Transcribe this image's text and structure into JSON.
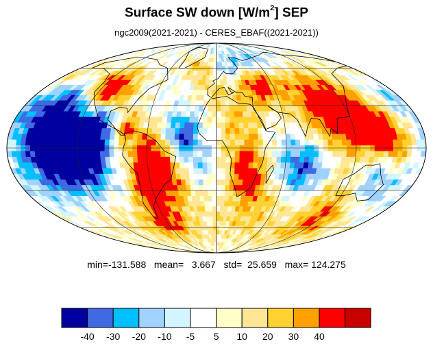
{
  "title": {
    "main": "Surface SW down [W/m",
    "sup": "2",
    "suffix": "]  SEP"
  },
  "subtitle": "ngc2009(2021-2021) - CERES_EBAF((2021-2021))",
  "stats": {
    "min": "-131.588",
    "mean": "3.667",
    "std": "25.659",
    "max": "124.275",
    "line": "min=-131.588   mean=   3.667   std=  25.659   max= 124.275"
  },
  "colorbar": {
    "colors": [
      "#0000a0",
      "#3f6ae3",
      "#00bfff",
      "#a0d2ff",
      "#d2f5ff",
      "#ffffff",
      "#ffffc8",
      "#ffe696",
      "#ffd232",
      "#ffa000",
      "#ff0000",
      "#c80000"
    ],
    "labels": [
      "-40",
      "-30",
      "-20",
      "-10",
      "-5",
      "5",
      "10",
      "20",
      "30",
      "40"
    ]
  },
  "map": {
    "projection": "mollweide",
    "blobs": [
      {
        "lon": -140,
        "lat": 5,
        "v": -50,
        "r": 22
      },
      {
        "lon": -115,
        "lat": -5,
        "v": -45,
        "r": 16
      },
      {
        "lon": -150,
        "lat": 28,
        "v": -25,
        "r": 15
      },
      {
        "lon": -140,
        "lat": -20,
        "v": -15,
        "r": 18
      },
      {
        "lon": -100,
        "lat": 20,
        "v": -40,
        "r": 10
      },
      {
        "lon": -60,
        "lat": -5,
        "v": 45,
        "r": 14
      },
      {
        "lon": -45,
        "lat": -20,
        "v": 40,
        "r": 12
      },
      {
        "lon": -65,
        "lat": -32,
        "v": 35,
        "r": 10
      },
      {
        "lon": -100,
        "lat": 35,
        "v": 40,
        "r": 12
      },
      {
        "lon": -115,
        "lat": 45,
        "v": 45,
        "r": 10
      },
      {
        "lon": -80,
        "lat": 15,
        "v": 35,
        "r": 8
      },
      {
        "lon": -30,
        "lat": 10,
        "v": -40,
        "r": 10
      },
      {
        "lon": -20,
        "lat": -10,
        "v": -15,
        "r": 12
      },
      {
        "lon": 20,
        "lat": 20,
        "v": 25,
        "r": 14
      },
      {
        "lon": 25,
        "lat": -10,
        "v": 35,
        "r": 12
      },
      {
        "lon": 30,
        "lat": -25,
        "v": 25,
        "r": 10
      },
      {
        "lon": 45,
        "lat": 45,
        "v": 45,
        "r": 10
      },
      {
        "lon": 100,
        "lat": 30,
        "v": 50,
        "r": 20
      },
      {
        "lon": 130,
        "lat": 15,
        "v": 45,
        "r": 16
      },
      {
        "lon": 150,
        "lat": 5,
        "v": 40,
        "r": 12
      },
      {
        "lon": 75,
        "lat": -12,
        "v": -40,
        "r": 14
      },
      {
        "lon": 140,
        "lat": -10,
        "v": -20,
        "r": 10
      },
      {
        "lon": 150,
        "lat": -28,
        "v": -15,
        "r": 10
      },
      {
        "lon": 10,
        "lat": 60,
        "v": -25,
        "r": 10
      },
      {
        "lon": 60,
        "lat": 65,
        "v": -20,
        "r": 10
      },
      {
        "lon": -20,
        "lat": 62,
        "v": 30,
        "r": 8
      },
      {
        "lon": 40,
        "lat": -45,
        "v": 25,
        "r": 18
      },
      {
        "lon": -60,
        "lat": -55,
        "v": 40,
        "r": 10
      },
      {
        "lon": 120,
        "lat": -55,
        "v": 35,
        "r": 12
      },
      {
        "lon": -120,
        "lat": -50,
        "v": 15,
        "r": 18
      },
      {
        "lon": 0,
        "lat": 45,
        "v": 20,
        "r": 10
      },
      {
        "lon": -170,
        "lat": 50,
        "v": 25,
        "r": 10
      },
      {
        "lon": 170,
        "lat": 40,
        "v": -15,
        "r": 12
      },
      {
        "lon": 110,
        "lat": -35,
        "v": 20,
        "r": 12
      },
      {
        "lon": -30,
        "lat": -40,
        "v": 15,
        "r": 14
      }
    ],
    "coastlines": [
      [
        [
          -165,
          65
        ],
        [
          -140,
          70
        ],
        [
          -120,
          70
        ],
        [
          -95,
          68
        ],
        [
          -80,
          63
        ],
        [
          -65,
          60
        ],
        [
          -55,
          50
        ],
        [
          -70,
          43
        ],
        [
          -76,
          35
        ],
        [
          -81,
          25
        ],
        [
          -83,
          28
        ],
        [
          -90,
          29
        ],
        [
          -97,
          26
        ],
        [
          -97,
          20
        ],
        [
          -90,
          15
        ],
        [
          -83,
          9
        ],
        [
          -79,
          9
        ],
        [
          -85,
          12
        ],
        [
          -95,
          16
        ],
        [
          -105,
          20
        ],
        [
          -112,
          28
        ],
        [
          -117,
          33
        ],
        [
          -124,
          40
        ],
        [
          -124,
          48
        ],
        [
          -130,
          55
        ],
        [
          -150,
          60
        ],
        [
          -165,
          60
        ],
        [
          -165,
          65
        ]
      ],
      [
        [
          -80,
          10
        ],
        [
          -72,
          12
        ],
        [
          -62,
          10
        ],
        [
          -52,
          5
        ],
        [
          -45,
          -2
        ],
        [
          -35,
          -6
        ],
        [
          -38,
          -15
        ],
        [
          -41,
          -22
        ],
        [
          -48,
          -26
        ],
        [
          -58,
          -35
        ],
        [
          -65,
          -42
        ],
        [
          -68,
          -52
        ],
        [
          -72,
          -50
        ],
        [
          -74,
          -40
        ],
        [
          -71,
          -30
        ],
        [
          -70,
          -18
        ],
        [
          -76,
          -12
        ],
        [
          -81,
          -5
        ],
        [
          -80,
          0
        ],
        [
          -78,
          6
        ],
        [
          -80,
          10
        ]
      ],
      [
        [
          -17,
          15
        ],
        [
          -10,
          30
        ],
        [
          -6,
          35
        ],
        [
          10,
          37
        ],
        [
          20,
          32
        ],
        [
          32,
          31
        ],
        [
          35,
          28
        ],
        [
          43,
          12
        ],
        [
          51,
          11
        ],
        [
          42,
          0
        ],
        [
          40,
          -10
        ],
        [
          35,
          -20
        ],
        [
          32,
          -28
        ],
        [
          20,
          -35
        ],
        [
          18,
          -30
        ],
        [
          12,
          -18
        ],
        [
          13,
          -8
        ],
        [
          9,
          0
        ],
        [
          5,
          5
        ],
        [
          -8,
          5
        ],
        [
          -15,
          10
        ],
        [
          -17,
          15
        ]
      ],
      [
        [
          -9,
          38
        ],
        [
          -9,
          43
        ],
        [
          -2,
          47
        ],
        [
          -4,
          49
        ],
        [
          2,
          51
        ],
        [
          5,
          54
        ],
        [
          9,
          57
        ],
        [
          12,
          55
        ],
        [
          20,
          55
        ],
        [
          28,
          60
        ],
        [
          25,
          65
        ],
        [
          20,
          70
        ],
        [
          30,
          70
        ],
        [
          40,
          67
        ],
        [
          60,
          70
        ],
        [
          80,
          73
        ],
        [
          100,
          76
        ],
        [
          120,
          73
        ],
        [
          140,
          72
        ],
        [
          160,
          70
        ],
        [
          180,
          66
        ]
      ],
      [
        [
          180,
          62
        ],
        [
          160,
          60
        ],
        [
          140,
          55
        ],
        [
          135,
          45
        ],
        [
          128,
          38
        ],
        [
          122,
          30
        ],
        [
          120,
          22
        ],
        [
          108,
          21
        ],
        [
          105,
          10
        ],
        [
          100,
          14
        ],
        [
          98,
          8
        ],
        [
          92,
          20
        ],
        [
          85,
          21
        ],
        [
          80,
          15
        ],
        [
          77,
          8
        ],
        [
          72,
          20
        ],
        [
          67,
          24
        ],
        [
          57,
          25
        ],
        [
          52,
          27
        ],
        [
          48,
          30
        ],
        [
          56,
          25
        ],
        [
          58,
          21
        ],
        [
          52,
          16
        ],
        [
          43,
          13
        ],
        [
          40,
          20
        ],
        [
          34,
          28
        ],
        [
          35,
          36
        ],
        [
          28,
          37
        ],
        [
          26,
          40
        ],
        [
          20,
          40
        ],
        [
          12,
          44
        ],
        [
          15,
          40
        ],
        [
          18,
          40
        ],
        [
          12,
          38
        ],
        [
          8,
          44
        ],
        [
          3,
          43
        ],
        [
          -5,
          36
        ],
        [
          -9,
          38
        ]
      ],
      [
        [
          114,
          -22
        ],
        [
          122,
          -18
        ],
        [
          130,
          -12
        ],
        [
          137,
          -12
        ],
        [
          142,
          -11
        ],
        [
          146,
          -19
        ],
        [
          153,
          -26
        ],
        [
          150,
          -37
        ],
        [
          140,
          -38
        ],
        [
          132,
          -32
        ],
        [
          122,
          -34
        ],
        [
          115,
          -34
        ],
        [
          114,
          -22
        ]
      ],
      [
        [
          -50,
          60
        ],
        [
          -42,
          60
        ],
        [
          -20,
          70
        ],
        [
          -22,
          80
        ],
        [
          -55,
          82
        ],
        [
          -60,
          77
        ],
        [
          -50,
          68
        ],
        [
          -50,
          60
        ]
      ],
      [
        [
          45,
          -25
        ],
        [
          50,
          -15
        ],
        [
          49,
          -12
        ],
        [
          44,
          -17
        ],
        [
          45,
          -25
        ]
      ]
    ]
  }
}
